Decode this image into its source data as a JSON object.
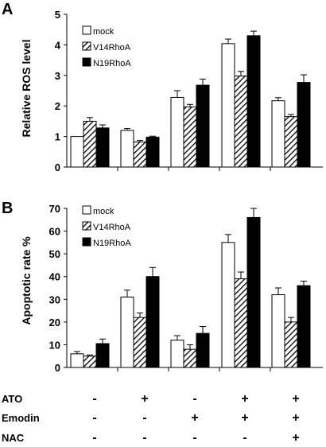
{
  "figure": {
    "conditions": {
      "labels": [
        "ATO",
        "Emodin",
        "NAC"
      ],
      "signs": [
        [
          "-",
          "+",
          "-",
          "+",
          "+"
        ],
        [
          "-",
          "-",
          "+",
          "+",
          "+"
        ],
        [
          "-",
          "-",
          "-",
          "-",
          "+"
        ]
      ]
    }
  },
  "chart_data": [
    {
      "type": "bar",
      "panel": "A",
      "ylabel": "Relative ROS level",
      "ylim": [
        0,
        5
      ],
      "yticks": [
        0,
        1,
        2,
        3,
        4,
        5
      ],
      "categories": [
        "",
        "",
        "",
        "",
        ""
      ],
      "legend_position": "top-left",
      "series": [
        {
          "name": "mock",
          "pattern": "white",
          "values": [
            1.0,
            1.2,
            2.28,
            4.04,
            2.17
          ],
          "errors": [
            0.0,
            0.06,
            0.22,
            0.15,
            0.1
          ]
        },
        {
          "name": "V14RhoA",
          "pattern": "hatched",
          "values": [
            1.5,
            0.82,
            1.97,
            2.98,
            1.65
          ],
          "errors": [
            0.12,
            0.05,
            0.08,
            0.15,
            0.07
          ]
        },
        {
          "name": "N19RhoA",
          "pattern": "black",
          "values": [
            1.28,
            0.98,
            2.68,
            4.3,
            2.77
          ],
          "errors": [
            0.1,
            0.03,
            0.2,
            0.15,
            0.25
          ]
        }
      ]
    },
    {
      "type": "bar",
      "panel": "B",
      "ylabel": "Apoptotic rate %",
      "ylim": [
        0,
        70
      ],
      "yticks": [
        0,
        10,
        20,
        30,
        40,
        50,
        60,
        70
      ],
      "categories": [
        "",
        "",
        "",
        "",
        ""
      ],
      "legend_position": "top-left",
      "series": [
        {
          "name": "mock",
          "pattern": "white",
          "values": [
            6,
            31,
            12,
            55,
            32
          ],
          "errors": [
            1.0,
            3.0,
            2.0,
            3.5,
            3.0
          ]
        },
        {
          "name": "V14RhoA",
          "pattern": "hatched",
          "values": [
            5,
            22,
            8,
            39,
            20
          ],
          "errors": [
            0.5,
            2.0,
            2.0,
            3.0,
            2.0
          ]
        },
        {
          "name": "N19RhoA",
          "pattern": "black",
          "values": [
            10.5,
            40,
            15,
            66,
            36
          ],
          "errors": [
            2.0,
            4.0,
            3.0,
            4.0,
            2.0
          ]
        }
      ]
    }
  ]
}
